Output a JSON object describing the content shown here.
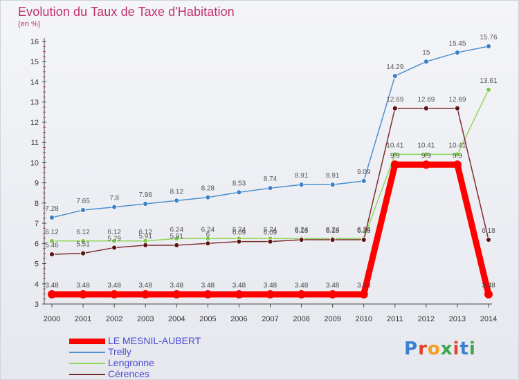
{
  "title": "Evolution du Taux de Taxe d'Habitation",
  "unit": "(en %)",
  "logo": "Proxiti",
  "chart_data": {
    "type": "line",
    "title": "Evolution du Taux de Taxe d'Habitation",
    "ylabel": "(en %)",
    "x": [
      2000,
      2001,
      2002,
      2003,
      2004,
      2005,
      2006,
      2007,
      2008,
      2009,
      2010,
      2011,
      2012,
      2013,
      2014
    ],
    "ylim": [
      3,
      16
    ],
    "yticks": [
      3,
      4,
      5,
      6,
      7,
      8,
      9,
      10,
      11,
      12,
      13,
      14,
      15,
      16
    ],
    "grid": false,
    "legend": "bottom-left",
    "series": [
      {
        "name": "Trelly",
        "color": "#4a8fd0",
        "marker": "#3f7fc4",
        "values": [
          7.28,
          7.65,
          7.8,
          7.96,
          8.12,
          8.28,
          8.53,
          8.74,
          8.91,
          8.91,
          9.09,
          14.29,
          15,
          15.45,
          15.76
        ],
        "labels": [
          "7.28",
          "7.65",
          "7.8",
          "7.96",
          "8.12",
          "8.28",
          "8.53",
          "8.74",
          "8.91",
          "8.91",
          "9.09",
          "14.29",
          "15",
          "15.45",
          "15.76"
        ]
      },
      {
        "name": "Lengronne",
        "color": "#8fd65a",
        "marker": "#7cc84a",
        "values": [
          6.12,
          6.12,
          6.12,
          6.12,
          6.24,
          6.24,
          6.24,
          6.24,
          6.24,
          6.24,
          6.24,
          10.41,
          10.41,
          10.41,
          13.61
        ],
        "labels": [
          "6.12",
          "6.12",
          "6.12",
          "6.12",
          "6.24",
          "6.24",
          "6.24",
          "6.24",
          "6.24",
          "6.24",
          "6.24",
          "10.41",
          "10.41",
          "10.41",
          "13.61"
        ]
      },
      {
        "name": "Cérences",
        "color": "#7a2c2c",
        "marker": "#5a1414",
        "values": [
          5.46,
          5.51,
          5.79,
          5.91,
          5.91,
          6,
          6.09,
          6.09,
          6.18,
          6.18,
          6.18,
          12.69,
          12.69,
          12.69,
          6.18
        ],
        "labels": [
          "5.46",
          "5.51",
          "5.79",
          "5.91",
          "5.91",
          "6",
          "6.09",
          "6.09",
          "6.18",
          "6.18",
          "6.18",
          "12.69",
          "12.69",
          "12.69",
          "6.18"
        ]
      },
      {
        "name": "LE MESNIL-AUBERT",
        "color": "#ff0000",
        "marker": "#ff0000",
        "values": [
          3.48,
          3.48,
          3.48,
          3.48,
          3.48,
          3.48,
          3.48,
          3.48,
          3.48,
          3.48,
          3.48,
          9.9,
          9.9,
          9.9,
          3.48
        ],
        "labels": [
          "3.48",
          "3.48",
          "3.48",
          "3.48",
          "3.48",
          "3.48",
          "3.48",
          "3.48",
          "3.48",
          "3.48",
          "3.48",
          "9.9",
          "9.9",
          "9.9",
          "3.48"
        ]
      }
    ]
  },
  "legend": [
    {
      "name": "LE MESNIL-AUBERT",
      "color": "#ff0000"
    },
    {
      "name": "Trelly",
      "color": "#4a8fd0"
    },
    {
      "name": "Lengronne",
      "color": "#8fd65a"
    },
    {
      "name": "Cérences",
      "color": "#7a2c2c"
    }
  ]
}
